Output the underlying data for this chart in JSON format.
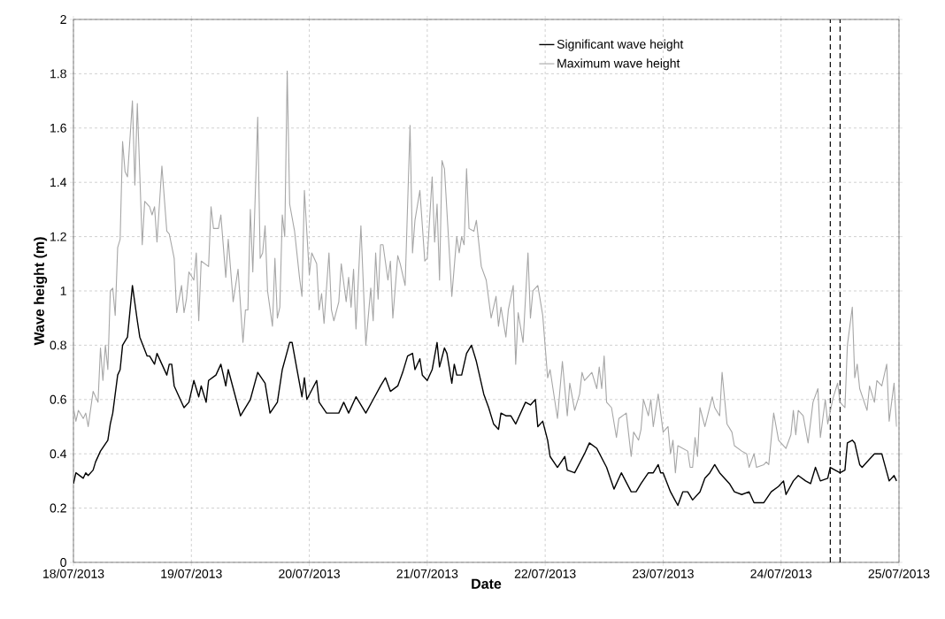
{
  "chart_data": {
    "type": "line",
    "xlabel": "Date",
    "ylabel": "Wave height (m)",
    "xlim": [
      "2013-07-18",
      "2013-07-25"
    ],
    "ylim": [
      0,
      2
    ],
    "xticks": [
      {
        "value": "2013-07-18",
        "label": "18/07/2013"
      },
      {
        "value": "2013-07-19",
        "label": "19/07/2013"
      },
      {
        "value": "2013-07-20",
        "label": "20/07/2013"
      },
      {
        "value": "2013-07-21",
        "label": "21/07/2013"
      },
      {
        "value": "2013-07-22",
        "label": "22/07/2013"
      },
      {
        "value": "2013-07-23",
        "label": "23/07/2013"
      },
      {
        "value": "2013-07-24",
        "label": "24/07/2013"
      },
      {
        "value": "2013-07-25",
        "label": "25/07/2013"
      }
    ],
    "yticks": [
      0,
      0.2,
      0.4,
      0.6,
      0.8,
      1,
      1.2,
      1.4,
      1.6,
      1.8,
      2
    ],
    "grid": true,
    "legend": "top right",
    "marker": "none",
    "line_style": "solid",
    "ref_lines": [
      {
        "axis": "x",
        "value": "2013-07-24T10:00",
        "color": "#000000",
        "line_style": "dashed"
      },
      {
        "axis": "x",
        "value": "2013-07-24T12:00",
        "color": "#000000",
        "line_style": "dashed"
      }
    ],
    "series": [
      {
        "name": "Significant wave height",
        "color": "#000000",
        "x": [
          "2013-07-18T00:00",
          "2013-07-18T00:30",
          "2013-07-18T02:00",
          "2013-07-18T02:30",
          "2013-07-18T03:00",
          "2013-07-18T04:00",
          "2013-07-18T04:30",
          "2013-07-18T05:30",
          "2013-07-18T07:00",
          "2013-07-18T07:30",
          "2013-07-18T08:00",
          "2013-07-18T09:00",
          "2013-07-18T09:30",
          "2013-07-18T10:00",
          "2013-07-18T11:00",
          "2013-07-18T12:00",
          "2013-07-18T13:00",
          "2013-07-18T13:30",
          "2013-07-18T15:00",
          "2013-07-18T15:30",
          "2013-07-18T16:30",
          "2013-07-18T17:00",
          "2013-07-18T18:00",
          "2013-07-18T19:00",
          "2013-07-18T19:30",
          "2013-07-18T20:00",
          "2013-07-18T20:30",
          "2013-07-18T21:30",
          "2013-07-18T22:30",
          "2013-07-18T23:30",
          "2013-07-19T00:30",
          "2013-07-19T01:30",
          "2013-07-19T02:00",
          "2013-07-19T03:00",
          "2013-07-19T03:30",
          "2013-07-19T05:00",
          "2013-07-19T06:00",
          "2013-07-19T07:00",
          "2013-07-19T07:30",
          "2013-07-19T10:00",
          "2013-07-19T12:00",
          "2013-07-19T13:30",
          "2013-07-19T15:00",
          "2013-07-19T16:00",
          "2013-07-19T17:30",
          "2013-07-19T18:30",
          "2013-07-19T20:00",
          "2013-07-19T20:30",
          "2013-07-19T21:30",
          "2013-07-19T22:30",
          "2013-07-19T23:00",
          "2013-07-19T23:30",
          "2013-07-20T01:30",
          "2013-07-20T02:00",
          "2013-07-20T03:30",
          "2013-07-20T06:00",
          "2013-07-20T07:00",
          "2013-07-20T08:00",
          "2013-07-20T09:30",
          "2013-07-20T11:30",
          "2013-07-20T13:00",
          "2013-07-20T14:30",
          "2013-07-20T15:30",
          "2013-07-20T16:30",
          "2013-07-20T18:00",
          "2013-07-20T19:00",
          "2013-07-20T20:00",
          "2013-07-20T21:00",
          "2013-07-20T21:30",
          "2013-07-20T22:30",
          "2013-07-20T23:00",
          "2013-07-21T00:00",
          "2013-07-21T01:00",
          "2013-07-21T02:00",
          "2013-07-21T02:30",
          "2013-07-21T03:30",
          "2013-07-21T04:00",
          "2013-07-21T05:00",
          "2013-07-21T05:30",
          "2013-07-21T06:00",
          "2013-07-21T07:00",
          "2013-07-21T08:00",
          "2013-07-21T09:00",
          "2013-07-21T10:00",
          "2013-07-21T11:30",
          "2013-07-21T12:30",
          "2013-07-21T13:30",
          "2013-07-21T14:30",
          "2013-07-21T15:00",
          "2013-07-21T16:00",
          "2013-07-21T17:00",
          "2013-07-21T18:00",
          "2013-07-21T18:30",
          "2013-07-21T20:00",
          "2013-07-21T21:00",
          "2013-07-21T22:00",
          "2013-07-21T22:30",
          "2013-07-21T23:30",
          "2013-07-22T00:30",
          "2013-07-22T01:00",
          "2013-07-22T02:30",
          "2013-07-22T04:00",
          "2013-07-22T04:30",
          "2013-07-22T06:00",
          "2013-07-22T08:00",
          "2013-07-22T09:00",
          "2013-07-22T10:30",
          "2013-07-22T12:30",
          "2013-07-22T14:00",
          "2013-07-22T15:30",
          "2013-07-22T17:30",
          "2013-07-22T18:30",
          "2013-07-22T19:30",
          "2013-07-22T21:00",
          "2013-07-22T22:00",
          "2013-07-22T23:00",
          "2013-07-22T23:30",
          "2013-07-23T00:00",
          "2013-07-23T01:30",
          "2013-07-23T03:00",
          "2013-07-23T04:00",
          "2013-07-23T05:00",
          "2013-07-23T06:00",
          "2013-07-23T07:30",
          "2013-07-23T08:30",
          "2013-07-23T09:30",
          "2013-07-23T10:30",
          "2013-07-23T11:30",
          "2013-07-23T13:30",
          "2013-07-23T14:30",
          "2013-07-23T16:00",
          "2013-07-23T17:30",
          "2013-07-23T18:30",
          "2013-07-23T20:30",
          "2013-07-23T22:00",
          "2013-07-23T23:30",
          "2013-07-24T00:30",
          "2013-07-24T01:00",
          "2013-07-24T02:30",
          "2013-07-24T03:30",
          "2013-07-24T05:00",
          "2013-07-24T06:00",
          "2013-07-24T07:00",
          "2013-07-24T08:00",
          "2013-07-24T09:30",
          "2013-07-24T10:00",
          "2013-07-24T11:00",
          "2013-07-24T12:00",
          "2013-07-24T13:00",
          "2013-07-24T13:30",
          "2013-07-24T14:30",
          "2013-07-24T15:00",
          "2013-07-24T16:00",
          "2013-07-24T16:30",
          "2013-07-24T18:00",
          "2013-07-24T19:00",
          "2013-07-24T20:30",
          "2013-07-24T22:00",
          "2013-07-24T23:00",
          "2013-07-24T23:30"
        ],
        "values": [
          0.29,
          0.33,
          0.31,
          0.33,
          0.32,
          0.34,
          0.37,
          0.41,
          0.45,
          0.51,
          0.55,
          0.69,
          0.71,
          0.8,
          0.83,
          1.02,
          0.89,
          0.83,
          0.76,
          0.76,
          0.73,
          0.77,
          0.73,
          0.69,
          0.73,
          0.73,
          0.65,
          0.61,
          0.57,
          0.59,
          0.67,
          0.61,
          0.65,
          0.59,
          0.67,
          0.69,
          0.73,
          0.65,
          0.71,
          0.54,
          0.6,
          0.7,
          0.66,
          0.55,
          0.59,
          0.71,
          0.81,
          0.81,
          0.71,
          0.61,
          0.68,
          0.6,
          0.67,
          0.59,
          0.55,
          0.55,
          0.59,
          0.55,
          0.61,
          0.55,
          0.6,
          0.65,
          0.68,
          0.63,
          0.65,
          0.7,
          0.76,
          0.77,
          0.71,
          0.75,
          0.69,
          0.67,
          0.71,
          0.81,
          0.72,
          0.79,
          0.77,
          0.66,
          0.73,
          0.69,
          0.69,
          0.77,
          0.8,
          0.74,
          0.62,
          0.57,
          0.51,
          0.49,
          0.55,
          0.54,
          0.54,
          0.51,
          0.53,
          0.59,
          0.58,
          0.6,
          0.5,
          0.52,
          0.45,
          0.39,
          0.35,
          0.39,
          0.34,
          0.33,
          0.4,
          0.44,
          0.42,
          0.35,
          0.27,
          0.33,
          0.26,
          0.26,
          0.29,
          0.33,
          0.33,
          0.36,
          0.33,
          0.33,
          0.26,
          0.21,
          0.26,
          0.26,
          0.23,
          0.26,
          0.31,
          0.33,
          0.36,
          0.33,
          0.29,
          0.26,
          0.25,
          0.26,
          0.22,
          0.22,
          0.26,
          0.28,
          0.3,
          0.25,
          0.3,
          0.32,
          0.3,
          0.29,
          0.35,
          0.3,
          0.31,
          0.35,
          0.34,
          0.33,
          0.34,
          0.44,
          0.45,
          0.44,
          0.36,
          0.35,
          0.38,
          0.4,
          0.4,
          0.3,
          0.32,
          0.3
        ]
      },
      {
        "name": "Maximum wave height",
        "color": "#a6a6a6",
        "x": [
          "2013-07-18T00:00",
          "2013-07-18T00:30",
          "2013-07-18T01:00",
          "2013-07-18T02:00",
          "2013-07-18T02:30",
          "2013-07-18T03:00",
          "2013-07-18T04:00",
          "2013-07-18T05:00",
          "2013-07-18T05:30",
          "2013-07-18T06:00",
          "2013-07-18T06:30",
          "2013-07-18T07:00",
          "2013-07-18T07:30",
          "2013-07-18T08:00",
          "2013-07-18T08:30",
          "2013-07-18T09:00",
          "2013-07-18T09:30",
          "2013-07-18T10:00",
          "2013-07-18T10:30",
          "2013-07-18T11:00",
          "2013-07-18T12:00",
          "2013-07-18T12:30",
          "2013-07-18T13:00",
          "2013-07-18T14:00",
          "2013-07-18T14:30",
          "2013-07-18T15:30",
          "2013-07-18T16:00",
          "2013-07-18T16:30",
          "2013-07-18T17:00",
          "2013-07-18T18:00",
          "2013-07-18T19:00",
          "2013-07-18T19:30",
          "2013-07-18T20:30",
          "2013-07-18T21:00",
          "2013-07-18T22:00",
          "2013-07-18T22:30",
          "2013-07-18T23:00",
          "2013-07-18T23:30",
          "2013-07-19T00:30",
          "2013-07-19T01:00",
          "2013-07-19T01:30",
          "2013-07-19T02:00",
          "2013-07-19T03:30",
          "2013-07-19T04:00",
          "2013-07-19T04:30",
          "2013-07-19T05:30",
          "2013-07-19T06:00",
          "2013-07-19T07:00",
          "2013-07-19T07:30",
          "2013-07-19T08:30",
          "2013-07-19T09:30",
          "2013-07-19T10:30",
          "2013-07-19T11:00",
          "2013-07-19T11:30",
          "2013-07-19T12:00",
          "2013-07-19T12:30",
          "2013-07-19T13:30",
          "2013-07-19T14:00",
          "2013-07-19T14:30",
          "2013-07-19T15:00",
          "2013-07-19T15:30",
          "2013-07-19T16:30",
          "2013-07-19T17:00",
          "2013-07-19T17:30",
          "2013-07-19T18:00",
          "2013-07-19T18:30",
          "2013-07-19T19:00",
          "2013-07-19T19:30",
          "2013-07-19T20:00",
          "2013-07-19T21:00",
          "2013-07-19T22:00",
          "2013-07-19T22:30",
          "2013-07-19T23:00",
          "2013-07-20T00:00",
          "2013-07-20T00:30",
          "2013-07-20T01:30",
          "2013-07-20T02:00",
          "2013-07-20T02:30",
          "2013-07-20T03:00",
          "2013-07-20T04:00",
          "2013-07-20T04:30",
          "2013-07-20T05:00",
          "2013-07-20T06:00",
          "2013-07-20T06:30",
          "2013-07-20T07:30",
          "2013-07-20T08:00",
          "2013-07-20T08:30",
          "2013-07-20T09:00",
          "2013-07-20T09:30",
          "2013-07-20T10:30",
          "2013-07-20T11:30",
          "2013-07-20T12:30",
          "2013-07-20T13:00",
          "2013-07-20T13:30",
          "2013-07-20T14:00",
          "2013-07-20T14:30",
          "2013-07-20T15:00",
          "2013-07-20T16:00",
          "2013-07-20T16:30",
          "2013-07-20T17:00",
          "2013-07-20T18:00",
          "2013-07-20T18:30",
          "2013-07-20T19:30",
          "2013-07-20T20:30",
          "2013-07-20T21:00",
          "2013-07-20T21:30",
          "2013-07-20T22:30",
          "2013-07-20T23:30",
          "2013-07-21T00:00",
          "2013-07-21T01:00",
          "2013-07-21T01:30",
          "2013-07-21T02:00",
          "2013-07-21T02:30",
          "2013-07-21T03:00",
          "2013-07-21T03:30",
          "2013-07-21T04:30",
          "2013-07-21T05:00",
          "2013-07-21T06:00",
          "2013-07-21T06:30",
          "2013-07-21T07:00",
          "2013-07-21T07:30",
          "2013-07-21T08:00",
          "2013-07-21T08:30",
          "2013-07-21T09:30",
          "2013-07-21T10:00",
          "2013-07-21T11:00",
          "2013-07-21T12:00",
          "2013-07-21T13:00",
          "2013-07-21T14:00",
          "2013-07-21T14:30",
          "2013-07-21T15:00",
          "2013-07-21T16:00",
          "2013-07-21T16:30",
          "2013-07-21T17:30",
          "2013-07-21T18:00",
          "2013-07-21T18:30",
          "2013-07-21T19:30",
          "2013-07-21T20:30",
          "2013-07-21T21:00",
          "2013-07-21T21:30",
          "2013-07-21T22:30",
          "2013-07-21T23:30",
          "2013-07-22T00:30",
          "2013-07-22T01:00",
          "2013-07-22T02:30",
          "2013-07-22T03:30",
          "2013-07-22T04:30",
          "2013-07-22T05:00",
          "2013-07-22T06:00",
          "2013-07-22T07:00",
          "2013-07-22T07:30",
          "2013-07-22T08:00",
          "2013-07-22T09:30",
          "2013-07-22T10:30",
          "2013-07-22T11:00",
          "2013-07-22T11:30",
          "2013-07-22T12:00",
          "2013-07-22T12:30",
          "2013-07-22T13:30",
          "2013-07-22T14:30",
          "2013-07-22T15:00",
          "2013-07-22T16:30",
          "2013-07-22T17:30",
          "2013-07-22T18:00",
          "2013-07-22T19:00",
          "2013-07-22T19:30",
          "2013-07-22T20:00",
          "2013-07-22T21:00",
          "2013-07-22T21:30",
          "2013-07-22T22:00",
          "2013-07-22T23:00",
          "2013-07-23T00:00",
          "2013-07-23T01:00",
          "2013-07-23T01:30",
          "2013-07-23T02:00",
          "2013-07-23T02:30",
          "2013-07-23T03:00",
          "2013-07-23T05:00",
          "2013-07-23T05:30",
          "2013-07-23T06:00",
          "2013-07-23T06:30",
          "2013-07-23T07:00",
          "2013-07-23T07:30",
          "2013-07-23T08:30",
          "2013-07-23T10:00",
          "2013-07-23T10:30",
          "2013-07-23T11:30",
          "2013-07-23T12:00",
          "2013-07-23T13:00",
          "2013-07-23T14:00",
          "2013-07-23T14:30",
          "2013-07-23T16:00",
          "2013-07-23T17:00",
          "2013-07-23T17:30",
          "2013-07-23T18:30",
          "2013-07-23T19:00",
          "2013-07-23T20:30",
          "2013-07-23T21:00",
          "2013-07-23T21:30",
          "2013-07-23T22:30",
          "2013-07-23T23:30",
          "2013-07-24T01:00",
          "2013-07-24T02:00",
          "2013-07-24T02:30",
          "2013-07-24T03:00",
          "2013-07-24T03:30",
          "2013-07-24T04:30",
          "2013-07-24T05:30",
          "2013-07-24T06:30",
          "2013-07-24T07:30",
          "2013-07-24T08:00",
          "2013-07-24T09:00",
          "2013-07-24T09:30",
          "2013-07-24T10:30",
          "2013-07-24T11:30",
          "2013-07-24T12:00",
          "2013-07-24T13:00",
          "2013-07-24T13:30",
          "2013-07-24T14:30",
          "2013-07-24T15:00",
          "2013-07-24T15:30",
          "2013-07-24T16:00",
          "2013-07-24T17:30",
          "2013-07-24T18:00",
          "2013-07-24T19:00",
          "2013-07-24T19:30",
          "2013-07-24T20:30",
          "2013-07-24T21:30",
          "2013-07-24T22:00",
          "2013-07-24T23:00",
          "2013-07-24T23:30"
        ],
        "values": [
          0.57,
          0.52,
          0.56,
          0.53,
          0.55,
          0.5,
          0.63,
          0.59,
          0.79,
          0.67,
          0.8,
          0.71,
          1.0,
          1.01,
          0.91,
          1.16,
          1.19,
          1.55,
          1.44,
          1.42,
          1.7,
          1.39,
          1.69,
          1.17,
          1.33,
          1.31,
          1.28,
          1.31,
          1.18,
          1.46,
          1.22,
          1.21,
          1.12,
          0.92,
          1.02,
          0.92,
          0.97,
          1.07,
          1.04,
          1.14,
          0.89,
          1.11,
          1.09,
          1.31,
          1.23,
          1.23,
          1.28,
          1.05,
          1.19,
          0.96,
          1.08,
          0.81,
          0.93,
          0.93,
          1.3,
          1.07,
          1.64,
          1.12,
          1.14,
          1.24,
          1.0,
          0.87,
          1.12,
          0.9,
          0.94,
          1.28,
          1.2,
          1.81,
          1.32,
          1.22,
          1.05,
          0.98,
          1.37,
          1.06,
          1.14,
          1.1,
          0.93,
          0.99,
          0.88,
          1.14,
          0.93,
          0.89,
          0.96,
          1.1,
          0.96,
          1.05,
          0.94,
          1.08,
          0.86,
          1.24,
          0.8,
          1.01,
          0.89,
          1.14,
          0.97,
          1.17,
          1.17,
          1.04,
          1.11,
          0.9,
          1.13,
          1.1,
          1.02,
          1.61,
          1.14,
          1.26,
          1.37,
          1.11,
          1.12,
          1.42,
          1.18,
          1.32,
          1.04,
          1.48,
          1.45,
          1.14,
          0.98,
          1.2,
          1.14,
          1.2,
          1.17,
          1.45,
          1.23,
          1.22,
          1.26,
          1.09,
          1.04,
          0.9,
          0.98,
          0.87,
          0.94,
          0.83,
          0.93,
          1.02,
          0.73,
          0.92,
          0.81,
          1.14,
          0.9,
          1.0,
          1.02,
          0.91,
          0.68,
          0.71,
          0.53,
          0.74,
          0.54,
          0.66,
          0.56,
          0.62,
          0.7,
          0.67,
          0.7,
          0.64,
          0.72,
          0.64,
          0.76,
          0.59,
          0.57,
          0.46,
          0.53,
          0.55,
          0.39,
          0.48,
          0.45,
          0.49,
          0.6,
          0.54,
          0.6,
          0.5,
          0.62,
          0.48,
          0.5,
          0.4,
          0.45,
          0.33,
          0.43,
          0.41,
          0.35,
          0.35,
          0.46,
          0.39,
          0.57,
          0.5,
          0.61,
          0.57,
          0.54,
          0.7,
          0.51,
          0.48,
          0.43,
          0.41,
          0.4,
          0.35,
          0.4,
          0.35,
          0.36,
          0.37,
          0.36,
          0.55,
          0.45,
          0.42,
          0.47,
          0.56,
          0.47,
          0.56,
          0.54,
          0.44,
          0.59,
          0.64,
          0.46,
          0.6,
          0.51,
          0.6,
          0.66,
          0.59,
          0.57,
          0.8,
          0.94,
          0.68,
          0.73,
          0.64,
          0.56,
          0.65,
          0.59,
          0.67,
          0.65,
          0.73,
          0.52,
          0.66,
          0.5
        ]
      }
    ]
  }
}
